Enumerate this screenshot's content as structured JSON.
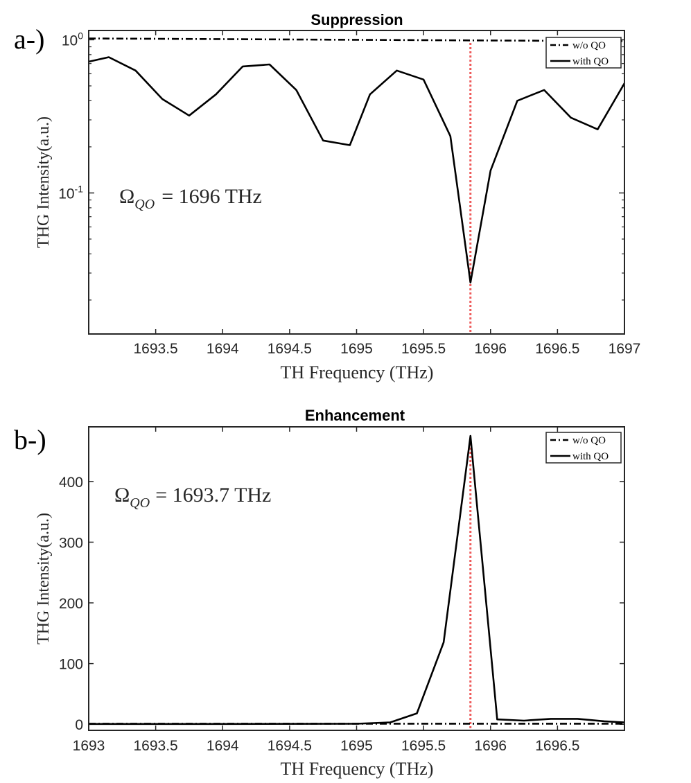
{
  "chart_data": [
    {
      "panel_label": "a-)",
      "type": "line",
      "title": "Suppression",
      "xlabel": "TH Frequency (THz)",
      "ylabel": "THG Intensity(a.u.)",
      "yscale": "log",
      "xlim": [
        1693,
        1697
      ],
      "ylim": [
        0.012,
        1.15
      ],
      "xticks": [
        1693.5,
        1694,
        1694.5,
        1695,
        1695.5,
        1696,
        1696.5,
        1697
      ],
      "xtick_labels": [
        "1693.5",
        "1694",
        "1694.5",
        "1695",
        "1695.5",
        "1696",
        "1696.5",
        "1697"
      ],
      "ytick_base": "10",
      "yticks": [
        {
          "value": 1,
          "exponent": "0"
        },
        {
          "value": 0.1,
          "exponent": "-1"
        }
      ],
      "marker_x": 1695.85,
      "annotation": {
        "omega": "Ω",
        "subscript": "QO",
        "text": "= 1696 THz"
      },
      "legend": [
        {
          "name": "w/o QO",
          "style": "dashdot"
        },
        {
          "name": "with QO",
          "style": "solid"
        }
      ],
      "series": [
        {
          "name": "w/o QO",
          "style": "dashdot",
          "x": [
            1693,
            1697
          ],
          "values": [
            1.02,
            0.98
          ]
        },
        {
          "name": "with QO",
          "style": "solid",
          "x": [
            1693,
            1693.15,
            1693.35,
            1693.55,
            1693.75,
            1693.95,
            1694.15,
            1694.35,
            1694.55,
            1694.75,
            1694.95,
            1695.1,
            1695.3,
            1695.5,
            1695.7,
            1695.85,
            1696.0,
            1696.2,
            1696.4,
            1696.6,
            1696.8,
            1697
          ],
          "values": [
            0.72,
            0.77,
            0.63,
            0.41,
            0.32,
            0.44,
            0.67,
            0.69,
            0.47,
            0.22,
            0.205,
            0.44,
            0.63,
            0.55,
            0.235,
            0.026,
            0.14,
            0.4,
            0.47,
            0.31,
            0.26,
            0.52
          ]
        }
      ]
    },
    {
      "panel_label": "b-)",
      "type": "line",
      "title": "Enhancement",
      "xlabel": "TH Frequency (THz)",
      "ylabel": "THG Intensity(a.u.)",
      "yscale": "linear",
      "xlim": [
        1693,
        1697
      ],
      "ylim": [
        -10,
        490
      ],
      "xticks": [
        1693,
        1693.5,
        1694,
        1694.5,
        1695,
        1695.5,
        1696,
        1696.5
      ],
      "xtick_labels": [
        "1693",
        "1693.5",
        "1694",
        "1694.5",
        "1695",
        "1695.5",
        "1696",
        "1696.5"
      ],
      "yticks": [
        0,
        100,
        200,
        300,
        400
      ],
      "ytick_labels": [
        "0",
        "100",
        "200",
        "300",
        "400"
      ],
      "marker_x": 1695.85,
      "annotation": {
        "omega": "Ω",
        "subscript": "QO",
        "text": "= 1693.7 THz"
      },
      "legend": [
        {
          "name": "w/o QO",
          "style": "dashdot"
        },
        {
          "name": "with QO",
          "style": "solid"
        }
      ],
      "series": [
        {
          "name": "w/o QO",
          "style": "dashdot",
          "x": [
            1693,
            1697
          ],
          "values": [
            1,
            1
          ]
        },
        {
          "name": "with QO",
          "style": "solid",
          "x": [
            1693,
            1694,
            1695,
            1695.25,
            1695.45,
            1695.65,
            1695.85,
            1696.05,
            1696.25,
            1696.45,
            1696.65,
            1696.85,
            1697
          ],
          "values": [
            0.5,
            0.5,
            0.8,
            3,
            18,
            135,
            475,
            8,
            6,
            9,
            9,
            5,
            3
          ]
        }
      ]
    }
  ]
}
